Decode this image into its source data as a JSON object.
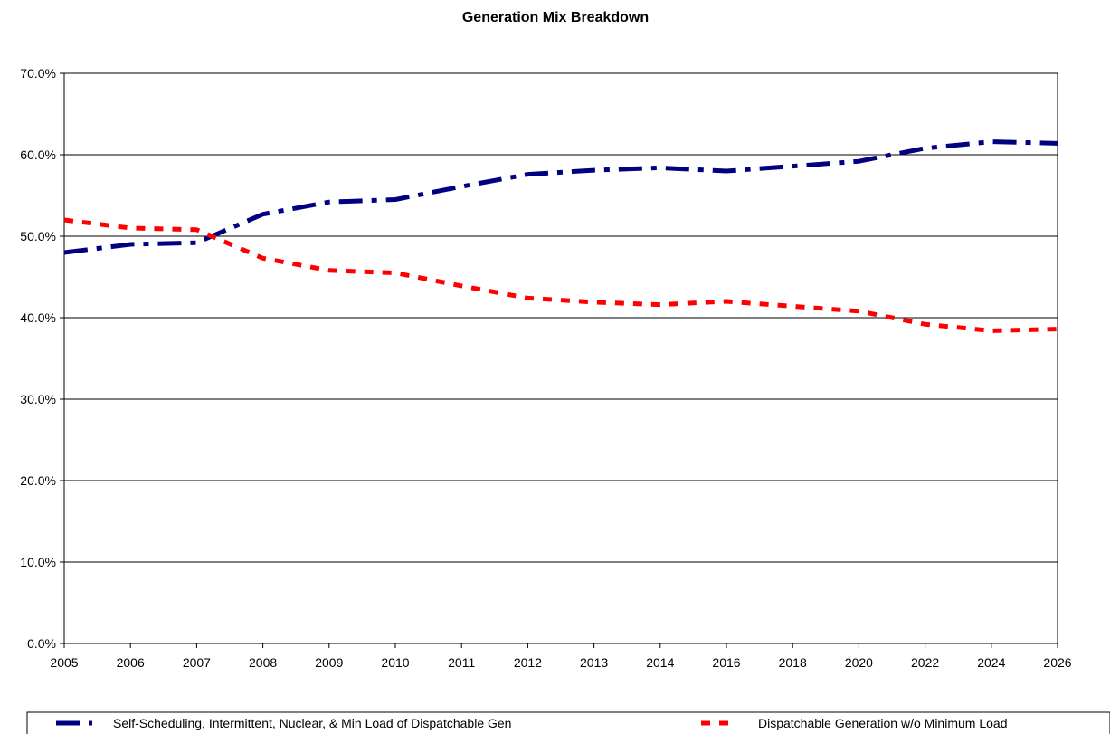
{
  "chart_data": {
    "type": "line",
    "title": "Generation Mix Breakdown",
    "xlabel": "",
    "ylabel": "",
    "categories": [
      "2005",
      "2006",
      "2007",
      "2008",
      "2009",
      "2010",
      "2011",
      "2012",
      "2013",
      "2014",
      "2016",
      "2018",
      "2020",
      "2022",
      "2024",
      "2026"
    ],
    "ylim": [
      0,
      0.7
    ],
    "yticks": [
      "0.0%",
      "10.0%",
      "20.0%",
      "30.0%",
      "40.0%",
      "50.0%",
      "60.0%",
      "70.0%"
    ],
    "grid": true,
    "legend_position": "bottom",
    "series": [
      {
        "name": "Self-Scheduling, Intermittent, Nuclear, & Min Load of Dispatchable Gen",
        "color": "#000080",
        "dash": "long-dash-dot",
        "values": [
          0.48,
          0.49,
          0.492,
          0.527,
          0.542,
          0.545,
          0.561,
          0.576,
          0.581,
          0.584,
          0.58,
          0.586,
          0.592,
          0.608,
          0.616,
          0.614
        ]
      },
      {
        "name": "Dispatchable Generation w/o Minimum Load",
        "color": "#ff0000",
        "dash": "short-dash",
        "values": [
          0.52,
          0.51,
          0.508,
          0.473,
          0.458,
          0.455,
          0.439,
          0.424,
          0.419,
          0.416,
          0.42,
          0.414,
          0.408,
          0.392,
          0.384,
          0.386
        ]
      }
    ]
  }
}
